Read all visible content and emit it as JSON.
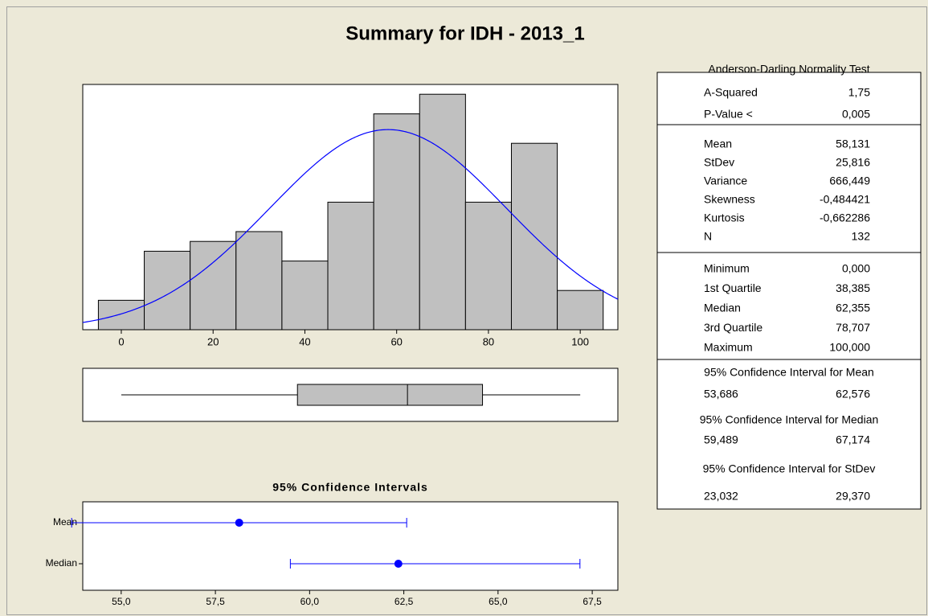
{
  "title": "Summary for IDH - 2013_1",
  "chart_data": [
    {
      "type": "histogram",
      "bins": [
        -5,
        5,
        15,
        25,
        35,
        45,
        55,
        65,
        75,
        85,
        95,
        105
      ],
      "counts": [
        3,
        8,
        9,
        10,
        7,
        13,
        22,
        24,
        13,
        19,
        4
      ],
      "color": "#c0c0c0",
      "fit": {
        "mean": 58.131,
        "stdev": 25.816,
        "color": "#0000ff"
      },
      "xlim": [
        -8.4,
        108.2
      ],
      "ylim": [
        0,
        25
      ],
      "xticks": [
        0,
        20,
        40,
        60,
        80,
        100
      ]
    },
    {
      "type": "boxplot",
      "values": {
        "min": 0,
        "q1": 38.385,
        "median": 62.355,
        "q3": 78.707,
        "max": 100
      },
      "color": "#c0c0c0",
      "xlim": [
        -8.4,
        108.2
      ]
    },
    {
      "type": "interval",
      "title": "95% Confidence Intervals",
      "categories": [
        "Mean",
        "Median"
      ],
      "values": [
        58.131,
        62.355
      ],
      "lower": [
        53.686,
        59.489
      ],
      "upper": [
        62.576,
        67.174
      ],
      "color": "#0000ff",
      "xlim": [
        53.98,
        68.18
      ],
      "xticks": [
        {
          "value": 55,
          "label": "55,0"
        },
        {
          "value": 57.5,
          "label": "57,5"
        },
        {
          "value": 60,
          "label": "60,0"
        },
        {
          "value": 62.5,
          "label": "62,5"
        },
        {
          "value": 65,
          "label": "65,0"
        },
        {
          "value": 67.5,
          "label": "67,5"
        }
      ]
    }
  ],
  "stats": {
    "sections": [
      {
        "title": "Anderson-Darling Normality Test",
        "rows": [
          {
            "label": "A-Squared",
            "value": "1,75"
          },
          {
            "label": "P-Value <",
            "value": "0,005"
          }
        ]
      },
      {
        "rows": [
          {
            "label": "Mean",
            "value": "58,131"
          },
          {
            "label": "StDev",
            "value": "25,816"
          },
          {
            "label": "Variance",
            "value": "666,449"
          },
          {
            "label": "Skewness",
            "value": "-0,484421"
          },
          {
            "label": "Kurtosis",
            "value": "-0,662286"
          },
          {
            "label": "N",
            "value": "132"
          }
        ]
      },
      {
        "rows": [
          {
            "label": "Minimum",
            "value": "0,000"
          },
          {
            "label": "1st Quartile",
            "value": "38,385"
          },
          {
            "label": "Median",
            "value": "62,355"
          },
          {
            "label": "3rd Quartile",
            "value": "78,707"
          },
          {
            "label": "Maximum",
            "value": "100,000"
          }
        ]
      },
      {
        "intervals": [
          {
            "title": "95% Confidence Interval for Mean",
            "values": [
              "53,686",
              "62,576"
            ]
          },
          {
            "title": "95% Confidence Interval for Median",
            "values": [
              "59,489",
              "67,174"
            ]
          },
          {
            "title": "95% Confidence Interval for StDev",
            "values": [
              "23,032",
              "29,370"
            ]
          }
        ]
      }
    ]
  }
}
